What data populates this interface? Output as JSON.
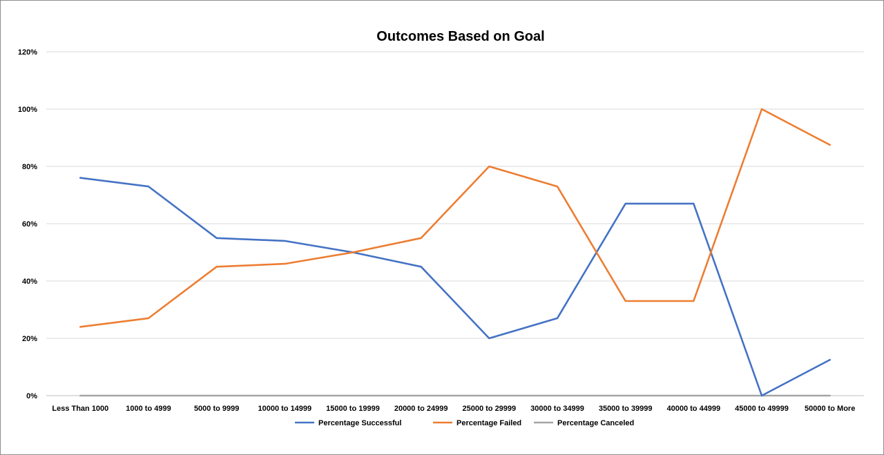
{
  "chart_data": {
    "type": "line",
    "title": "Outcomes Based on Goal",
    "xlabel": "",
    "ylabel": "",
    "categories": [
      "Less Than 1000",
      "1000 to 4999",
      "5000 to 9999",
      "10000 to 14999",
      "15000 to 19999",
      "20000 to 24999",
      "25000 to 29999",
      "30000 to 34999",
      "35000 to 39999",
      "40000 to 44999",
      "45000 to 49999",
      "50000 to More"
    ],
    "yticks": [
      "0%",
      "20%",
      "40%",
      "60%",
      "80%",
      "100%",
      "120%"
    ],
    "ylim": [
      0,
      120
    ],
    "grid": true,
    "legend_position": "bottom",
    "series": [
      {
        "name": "Percentage Successful",
        "color": "#4472C4",
        "values": [
          76,
          73,
          55,
          54,
          50,
          45,
          20,
          27,
          67,
          67,
          0,
          12.5
        ]
      },
      {
        "name": "Percentage Failed",
        "color": "#ED7D31",
        "values": [
          24,
          27,
          45,
          46,
          50,
          55,
          80,
          73,
          33,
          33,
          100,
          87.5
        ]
      },
      {
        "name": "Percentage Canceled",
        "color": "#A5A5A5",
        "values": [
          0,
          0,
          0,
          0,
          0,
          0,
          0,
          0,
          0,
          0,
          0,
          0
        ]
      }
    ]
  }
}
